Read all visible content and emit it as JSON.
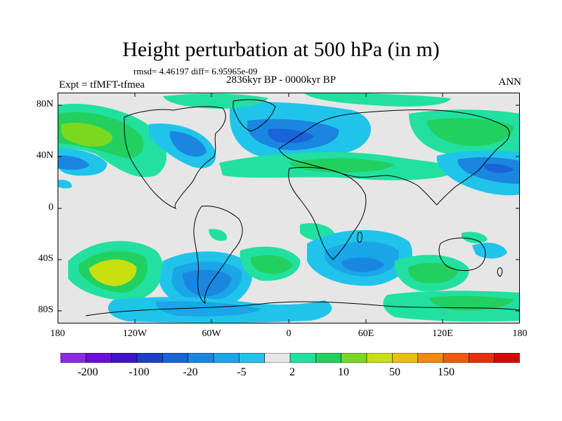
{
  "title": "Height perturbation at 500 hPa (in m)",
  "stats": "rmsd= 4.46197 diff= 6.95965e-09",
  "experiment": "Expt = tfMFT-tfmea",
  "period": "2836kyr BP - 0000kyr BP",
  "season": "ANN",
  "y_ticks": [
    "80N",
    "40N",
    "0",
    "40S",
    "80S"
  ],
  "x_ticks": [
    "180",
    "120W",
    "60W",
    "0",
    "60E",
    "120E",
    "180"
  ],
  "colorbar": {
    "colors": [
      "#8a2be2",
      "#6a0fd8",
      "#3d14c8",
      "#1f3fc8",
      "#1a63d8",
      "#1a86e0",
      "#1aa6e8",
      "#20c4ea",
      "#e6e6e6",
      "#22e0a0",
      "#22d060",
      "#7ad81e",
      "#c8e010",
      "#e8c010",
      "#f08a10",
      "#ef5a10",
      "#e8300c",
      "#d40a0a"
    ],
    "labels": [
      "-200",
      "-100",
      "-20",
      "-5",
      "2",
      "10",
      "50",
      "150"
    ]
  },
  "palette": {
    "neutral": "#e6e6e6",
    "neg_light": "#20c4ea",
    "neg_mid": "#1aa6e8",
    "neg_strong": "#1a86e0",
    "neg_deep": "#1a63d8",
    "pos_light": "#22e0a0",
    "pos_mid": "#22d060",
    "pos_strong": "#7ad81e",
    "pos_peak": "#c8e010"
  }
}
